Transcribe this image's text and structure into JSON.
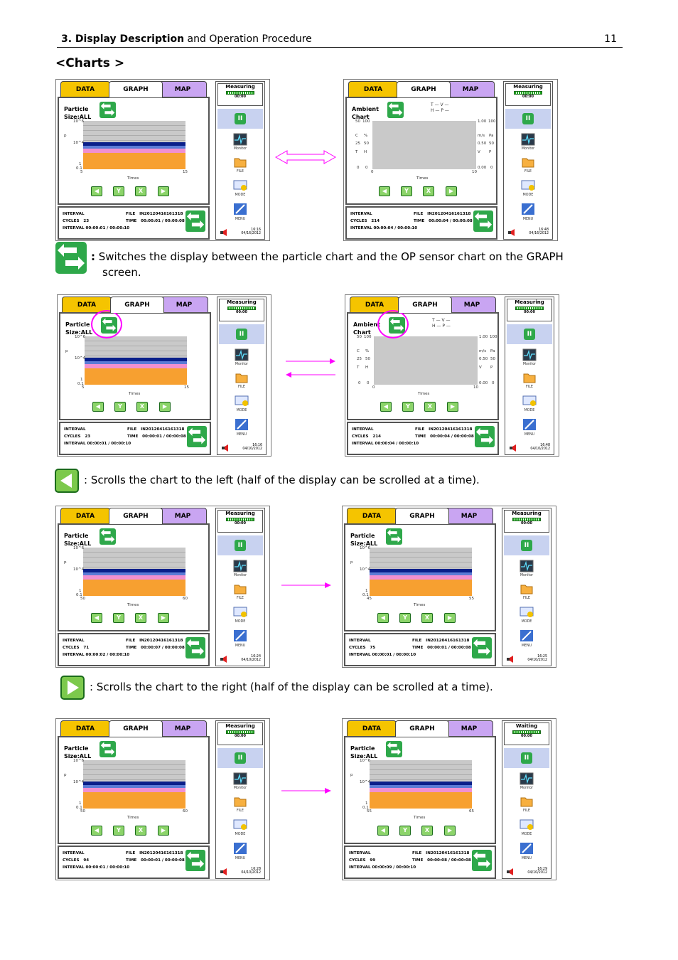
{
  "header": {
    "chapter_bold": "3. Display Description",
    "chapter_rest": " and Operation Procedure",
    "page": "11"
  },
  "section_title": "<Charts >",
  "descriptions": [
    {
      "bold": ":",
      "text": " Switches the display between the particle chart and the OP sensor chart on the GRAPH",
      "text2": "screen."
    },
    {
      "text": ": Scrolls the chart to the left (half of the display can be scrolled at a time)."
    },
    {
      "text": ": Scrolls the chart to the right (half of the display can be scrolled at a time)."
    }
  ],
  "common": {
    "tab_data": "DATA",
    "tab_graph": "GRAPH",
    "tab_map": "MAP",
    "particle_title1": "Particle",
    "particle_title2": "Size:ALL",
    "ambient_title1": "Ambient",
    "ambient_title2": "Chart",
    "times": "Times",
    "y_top": "10^6",
    "y_p": "p",
    "y_mid": "10^4",
    "y_one": "1",
    "y_low": "0.1",
    "btn_y": "Y",
    "btn_x": "X",
    "interval": "INTERVAL",
    "cycles": "CYCLES",
    "file": "FILE",
    "time": "TIME",
    "file_name": "IN20120416161318",
    "monitor": "Monitor",
    "file_lbl": "FILE",
    "mode": "MODE",
    "menu": "MENU",
    "amb_legend1": "T — V —",
    "amb_legend2": "H — P —",
    "amb_left_top": "50",
    "amb_100": "100",
    "amb_left_mid": "25",
    "amb_50": "50",
    "amb_zero": "0",
    "amb_c": "C",
    "amb_pct": "%",
    "amb_t": "T",
    "amb_h": "H",
    "amb_r1": "1.00",
    "amb_r2": "0.50",
    "amb_r3": "0.00",
    "amb_rr1": "100",
    "amb_rr2": "50",
    "amb_rr3": "0",
    "amb_ms": "m/s",
    "amb_pa": "Pa",
    "amb_v": "V",
    "amb_p": "P",
    "amb_x0": "0",
    "amb_x10": "10"
  },
  "panels": [
    {
      "kind": "particle",
      "status": "Measuring",
      "stat_time": "00:00",
      "x0": "5",
      "x1": "15",
      "cycles": "23",
      "time_val": "00:00:01 / 00:00:08",
      "interval_val": "00:00:01 / 00:00:10",
      "clock": "16:16",
      "date": "04/16/2012"
    },
    {
      "kind": "ambient",
      "status": "Measuring",
      "stat_time": "00:00",
      "x0": "0",
      "x1": "10",
      "cycles": "214",
      "time_val": "00:00:04 / 00:00:08",
      "interval_val": "00:00:04 / 00:00:10",
      "clock": "16:48",
      "date": "04/16/2012"
    },
    {
      "kind": "particle",
      "status": "Measuring",
      "stat_time": "00:00",
      "x0": "5",
      "x1": "15",
      "cycles": "23",
      "time_val": "00:00:01 / 00:00:08",
      "interval_val": "00:00:01 / 00:00:10",
      "clock": "16:16",
      "date": "04/10/2012"
    },
    {
      "kind": "ambient",
      "status": "Measuring",
      "stat_time": "00:00",
      "x0": "0",
      "x1": "10",
      "cycles": "214",
      "time_val": "00:00:04 / 00:00:08",
      "interval_val": "00:00:04 / 00:00:10",
      "clock": "16:48",
      "date": "04/10/2012"
    },
    {
      "kind": "particle",
      "status": "Measuring",
      "stat_time": "00:00",
      "x0": "50",
      "x1": "60",
      "cycles": "71",
      "time_val": "00:00:07 / 00:00:08",
      "interval_val": "00:00:02 / 00:00:10",
      "clock": "16:24",
      "date": "04/10/2012"
    },
    {
      "kind": "particle",
      "status": "Measuring",
      "stat_time": "00:00",
      "x0": "45",
      "x1": "55",
      "cycles": "75",
      "time_val": "00:00:01 / 00:00:08",
      "interval_val": "00:00:01 / 00:00:10",
      "clock": "16:25",
      "date": "04/10/2012"
    },
    {
      "kind": "particle",
      "status": "Measuring",
      "stat_time": "00:00",
      "x0": "50",
      "x1": "60",
      "cycles": "94",
      "time_val": "00:00:01 / 00:00:08",
      "interval_val": "00:00:01 / 00:00:10",
      "clock": "16:28",
      "date": "04/10/2012"
    },
    {
      "kind": "particle",
      "status": "Waiting",
      "stat_time": "00:00",
      "x0": "55",
      "x1": "65",
      "cycles": "99",
      "time_val": "00:00:08 / 00:00:08",
      "interval_val": "00:00:09 / 00:00:10",
      "clock": "16:29",
      "date": "04/10/2012"
    }
  ],
  "colors": {
    "arrow": "#ff00ff",
    "accent_green": "#2ea84a",
    "data_tab": "#f5c400",
    "map_tab": "#c9a5f2"
  }
}
